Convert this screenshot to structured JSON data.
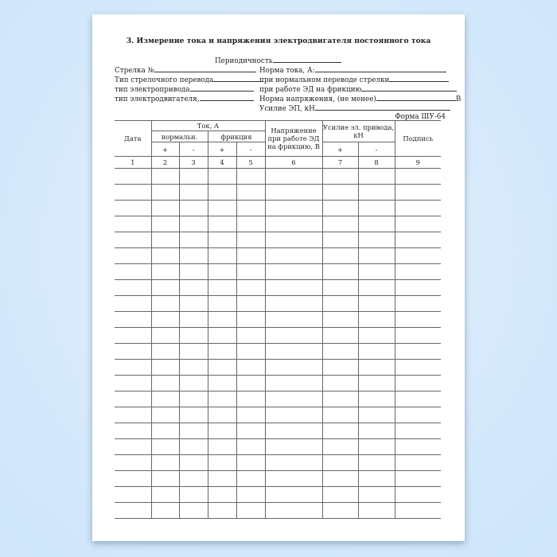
{
  "document": {
    "title": "3. Измерение тока и напряжения электродвигателя постоянного тока",
    "periodicity_label": "Периодичность",
    "fields_left": [
      "Стрелка №",
      "Тип стрелочного перевода",
      "тип электропривода",
      "тип электродвигателя,"
    ],
    "fields_right": [
      "Норма тока, А:",
      "при нормальном переводе стрелки",
      "при работе ЭД на фрикцию",
      "Норма напряжения, (не менее)",
      "Усилие ЭП, кН"
    ],
    "voltage_unit": "В",
    "form_number": "Форма ШУ-64"
  },
  "table": {
    "col_date": "Дата",
    "col_current": "Ток, А",
    "col_normal": "нормальн.",
    "col_friction": "фрикция",
    "col_voltage": "Напряжение при работе ЭД на фрикцию, В",
    "col_force": "Усилие эл. привода, кН",
    "col_signature": "Подпись",
    "plus": "+",
    "minus": "-",
    "numbers": [
      "1",
      "2",
      "3",
      "4",
      "5",
      "6",
      "7",
      "8",
      "9"
    ],
    "empty_rows": 22
  }
}
